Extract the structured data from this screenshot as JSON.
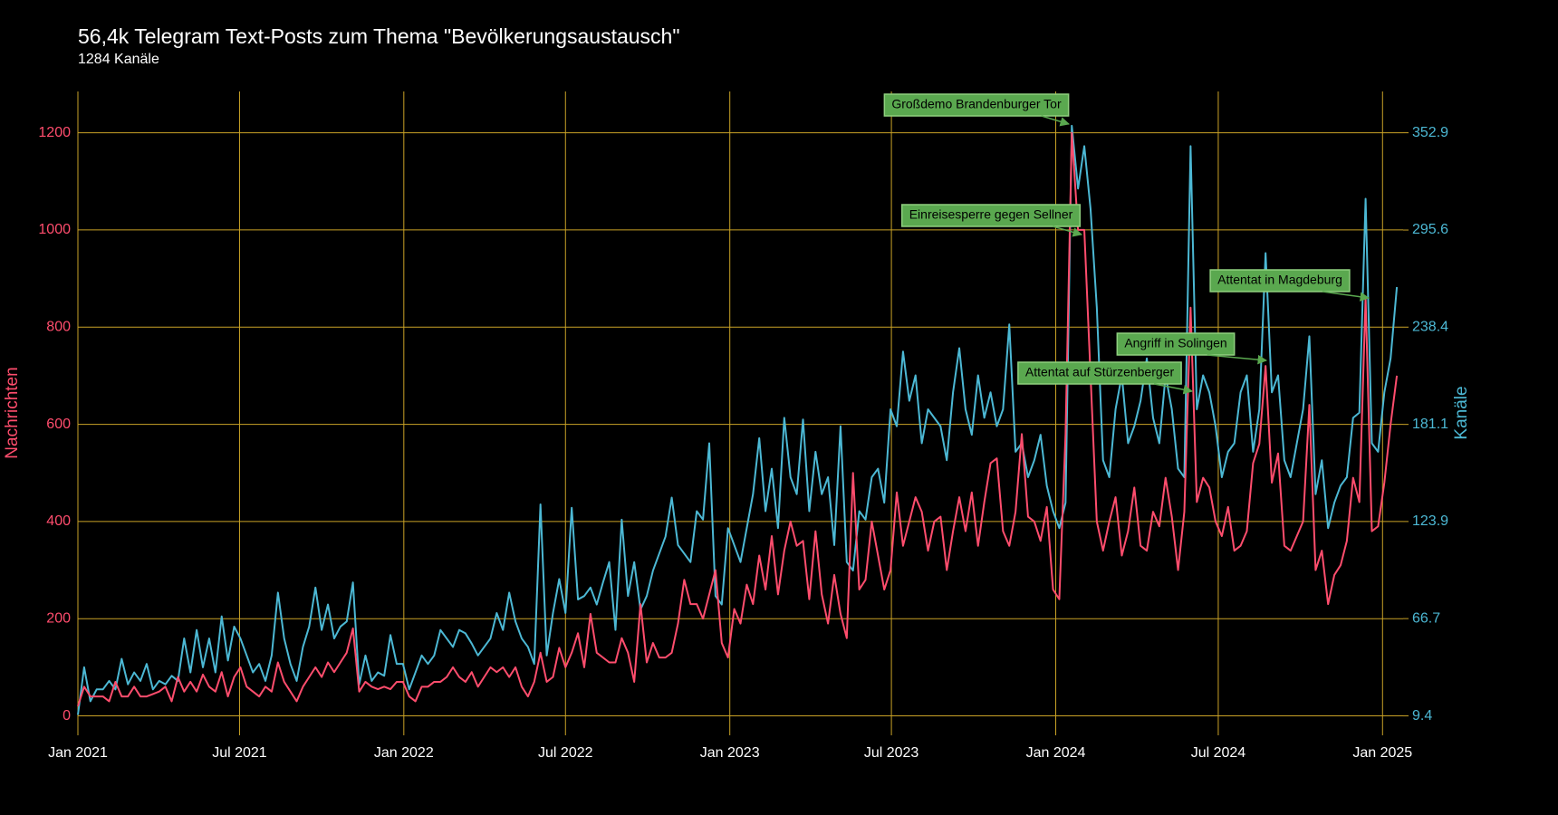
{
  "chart_data": {
    "type": "line",
    "title": "56,4k Telegram Text-Posts zum Thema \"Bevölkerungsaustausch\"",
    "subtitle": "1284 Kanäle",
    "y_label": "Nachrichten",
    "y2_label": "Kanäle",
    "grid": true,
    "grid_color": "#c9a227",
    "xlim": [
      0,
      212
    ],
    "xticks": [
      {
        "value": 0,
        "label": "Jan 2021"
      },
      {
        "value": 25.86,
        "label": "Jul 2021"
      },
      {
        "value": 52.14,
        "label": "Jan 2022"
      },
      {
        "value": 78,
        "label": "Jul 2022"
      },
      {
        "value": 104.29,
        "label": "Jan 2023"
      },
      {
        "value": 130.14,
        "label": "Jul 2023"
      },
      {
        "value": 156.43,
        "label": "Jan 2024"
      },
      {
        "value": 182.43,
        "label": "Jul 2024"
      },
      {
        "value": 208.71,
        "label": "Jan 2025"
      }
    ],
    "ylim": [
      -40,
      1285
    ],
    "yticks": [
      0,
      200,
      400,
      600,
      800,
      1000,
      1200
    ],
    "y2lim": [
      -2.05,
      377.23
    ],
    "y2ticks": [
      9.4,
      66.7,
      123.9,
      181.1,
      238.4,
      295.6,
      352.9
    ],
    "series": [
      {
        "name": "Nachrichten",
        "color": "#ff4d6d",
        "values": [
          20,
          60,
          40,
          40,
          40,
          30,
          70,
          40,
          40,
          60,
          40,
          40,
          45,
          50,
          60,
          30,
          80,
          50,
          70,
          50,
          85,
          60,
          50,
          90,
          40,
          80,
          100,
          60,
          50,
          40,
          60,
          50,
          110,
          70,
          50,
          30,
          60,
          80,
          100,
          80,
          110,
          90,
          110,
          130,
          180,
          50,
          70,
          60,
          55,
          60,
          55,
          70,
          70,
          40,
          30,
          60,
          60,
          70,
          70,
          80,
          100,
          80,
          70,
          90,
          60,
          80,
          100,
          90,
          100,
          80,
          100,
          60,
          40,
          70,
          130,
          70,
          80,
          140,
          100,
          130,
          170,
          100,
          210,
          130,
          120,
          110,
          110,
          160,
          130,
          70,
          230,
          110,
          150,
          120,
          120,
          130,
          190,
          280,
          230,
          230,
          200,
          250,
          300,
          150,
          120,
          220,
          190,
          270,
          230,
          330,
          260,
          370,
          250,
          340,
          400,
          350,
          360,
          240,
          380,
          250,
          190,
          290,
          210,
          160,
          500,
          260,
          280,
          400,
          330,
          260,
          300,
          460,
          350,
          400,
          450,
          420,
          340,
          400,
          410,
          300,
          380,
          450,
          380,
          460,
          350,
          440,
          520,
          530,
          380,
          350,
          420,
          580,
          410,
          400,
          360,
          430,
          260,
          240,
          580,
          1200,
          1000,
          1000,
          700,
          400,
          340,
          400,
          450,
          330,
          380,
          470,
          350,
          340,
          420,
          390,
          490,
          410,
          300,
          420,
          840,
          440,
          490,
          470,
          400,
          370,
          430,
          340,
          350,
          380,
          520,
          560,
          720,
          480,
          540,
          350,
          340,
          370,
          400,
          640,
          300,
          340,
          230,
          290,
          310,
          360,
          490,
          440,
          860,
          380,
          390,
          480,
          600,
          700
        ]
      },
      {
        "name": "Kanäle",
        "color": "#4cb8d4",
        "axis": "y2",
        "values": [
          10,
          38,
          18,
          25,
          25,
          30,
          25,
          43,
          28,
          35,
          30,
          40,
          25,
          30,
          28,
          33,
          30,
          55,
          35,
          60,
          38,
          55,
          35,
          68,
          42,
          62,
          55,
          45,
          35,
          40,
          30,
          45,
          82,
          55,
          40,
          30,
          50,
          62,
          85,
          60,
          75,
          55,
          62,
          65,
          88,
          28,
          45,
          30,
          35,
          33,
          57,
          40,
          40,
          25,
          35,
          45,
          40,
          45,
          60,
          55,
          50,
          60,
          58,
          52,
          45,
          50,
          55,
          70,
          60,
          82,
          65,
          55,
          50,
          40,
          134,
          45,
          70,
          90,
          70,
          132,
          78,
          80,
          85,
          75,
          88,
          100,
          60,
          125,
          80,
          100,
          72,
          80,
          95,
          105,
          115,
          138,
          110,
          105,
          100,
          130,
          125,
          170,
          80,
          75,
          120,
          110,
          100,
          120,
          140,
          173,
          130,
          155,
          120,
          185,
          150,
          140,
          184,
          130,
          165,
          140,
          150,
          110,
          180,
          100,
          95,
          130,
          125,
          150,
          155,
          135,
          190,
          180,
          224,
          195,
          210,
          170,
          190,
          185,
          180,
          160,
          200,
          226,
          190,
          175,
          210,
          185,
          200,
          180,
          190,
          240,
          165,
          170,
          150,
          160,
          175,
          145,
          130,
          120,
          135,
          357,
          320,
          345,
          308,
          250,
          160,
          150,
          190,
          210,
          170,
          180,
          195,
          220,
          185,
          170,
          210,
          190,
          155,
          150,
          345,
          190,
          210,
          200,
          180,
          150,
          165,
          170,
          200,
          210,
          165,
          190,
          282,
          200,
          210,
          160,
          150,
          170,
          190,
          233,
          140,
          160,
          120,
          135,
          145,
          150,
          185,
          188,
          314,
          170,
          165,
          200,
          220,
          262
        ]
      }
    ],
    "annotations": [
      {
        "text": "Großdemo Brandenburger Tor"
      },
      {
        "text": "Einreisesperre gegen Sellner"
      },
      {
        "text": "Attentat in Magdeburg"
      },
      {
        "text": "Angriff in Solingen"
      },
      {
        "text": "Attentat auf Stürzenberger"
      }
    ]
  }
}
